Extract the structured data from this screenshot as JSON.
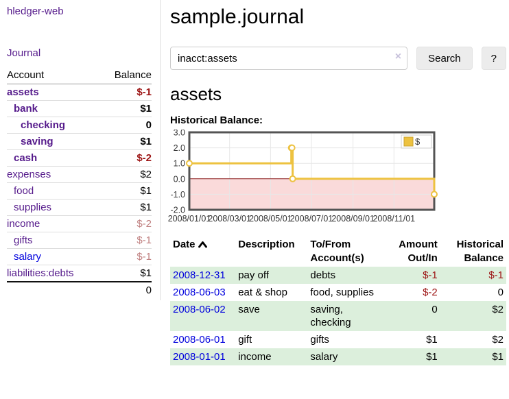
{
  "app": {
    "brand": "hledger-web"
  },
  "sidebar": {
    "nav_journal": "Journal",
    "accounts_table": {
      "header_account": "Account",
      "header_balance": "Balance",
      "rows": [
        {
          "name": "assets",
          "indent": 1,
          "in_acct": true,
          "balance": "$-1",
          "tone": "neg-strong",
          "link": "purple"
        },
        {
          "name": "bank",
          "indent": 2,
          "in_acct": true,
          "balance": "$1",
          "tone": "",
          "link": "purple"
        },
        {
          "name": "checking",
          "indent": 3,
          "in_acct": true,
          "balance": "0",
          "tone": "",
          "link": "purple"
        },
        {
          "name": "saving",
          "indent": 3,
          "in_acct": true,
          "balance": "$1",
          "tone": "",
          "link": "purple"
        },
        {
          "name": "cash",
          "indent": 2,
          "in_acct": true,
          "balance": "$-2",
          "tone": "neg-strong",
          "link": "purple"
        },
        {
          "name": "expenses",
          "indent": 1,
          "in_acct": false,
          "balance": "$2",
          "tone": "",
          "link": "purple"
        },
        {
          "name": "food",
          "indent": 2,
          "in_acct": false,
          "balance": "$1",
          "tone": "",
          "link": "purple"
        },
        {
          "name": "supplies",
          "indent": 2,
          "in_acct": false,
          "balance": "$1",
          "tone": "",
          "link": "purple"
        },
        {
          "name": "income",
          "indent": 1,
          "in_acct": false,
          "balance": "$-2",
          "tone": "neg-soft",
          "link": "purple"
        },
        {
          "name": "gifts",
          "indent": 2,
          "in_acct": false,
          "balance": "$-1",
          "tone": "neg-soft",
          "link": "purple"
        },
        {
          "name": "salary",
          "indent": 2,
          "in_acct": false,
          "balance": "$-1",
          "tone": "neg-soft",
          "link": "blue"
        },
        {
          "name": "liabilities:debts",
          "indent": 1,
          "in_acct": false,
          "balance": "$1",
          "tone": "",
          "link": "purple"
        }
      ],
      "total": "0"
    }
  },
  "main": {
    "title": "sample.journal",
    "search": {
      "value": "inacct:assets",
      "clear_glyph": "×",
      "search_label": "Search",
      "help_label": "?"
    },
    "account_heading": "assets",
    "chart_label": "Historical Balance:"
  },
  "chart_data": {
    "type": "line",
    "step": true,
    "title": "Historical Balance",
    "series": [
      {
        "name": "$",
        "color": "#edc240",
        "points": [
          [
            "2008-01-01",
            1
          ],
          [
            "2008-06-01",
            2
          ],
          [
            "2008-06-02",
            2
          ],
          [
            "2008-06-03",
            0
          ],
          [
            "2008-12-31",
            -1
          ]
        ]
      }
    ],
    "x_range": [
      "2008-01-01",
      "2008-12-31"
    ],
    "x_ticks": [
      "2008/01/01",
      "2008/03/01",
      "2008/05/01",
      "2008/07/01",
      "2008/09/01",
      "2008/11/01"
    ],
    "y_ticks": [
      3.0,
      2.0,
      1.0,
      0.0,
      -1.0,
      -2.0
    ],
    "ylim": [
      -2,
      3
    ],
    "grid": true,
    "legend_position": "top-right",
    "legend_label": "$",
    "negative_region_color": "#fadada",
    "zero_line_color": "#8b1a1a",
    "grid_color": "#e7e7e7",
    "frame_color": "#545454"
  },
  "register_table": {
    "headers": {
      "date": [
        "Date"
      ],
      "description": [
        "Description"
      ],
      "accounts": [
        "To/From",
        "Account(s)"
      ],
      "amount": [
        "Amount",
        "Out/In"
      ],
      "balance": [
        "Historical",
        "Balance"
      ]
    },
    "rows": [
      {
        "date": "2008-12-31",
        "description": "pay off",
        "accounts": "debts",
        "amount": "$-1",
        "amount_tone": "neg",
        "balance": "$-1",
        "balance_tone": "neg",
        "shaded": true
      },
      {
        "date": "2008-06-03",
        "description": "eat & shop",
        "accounts": "food, supplies",
        "amount": "$-2",
        "amount_tone": "neg",
        "balance": "0",
        "balance_tone": "",
        "shaded": false
      },
      {
        "date": "2008-06-02",
        "description": "save",
        "accounts": "saving, checking",
        "amount": "0",
        "amount_tone": "",
        "balance": "$2",
        "balance_tone": "",
        "shaded": true
      },
      {
        "date": "2008-06-01",
        "description": "gift",
        "accounts": "gifts",
        "amount": "$1",
        "amount_tone": "",
        "balance": "$2",
        "balance_tone": "",
        "shaded": false
      },
      {
        "date": "2008-01-01",
        "description": "income",
        "accounts": "salary",
        "amount": "$1",
        "amount_tone": "",
        "balance": "$1",
        "balance_tone": "",
        "shaded": true
      }
    ]
  }
}
